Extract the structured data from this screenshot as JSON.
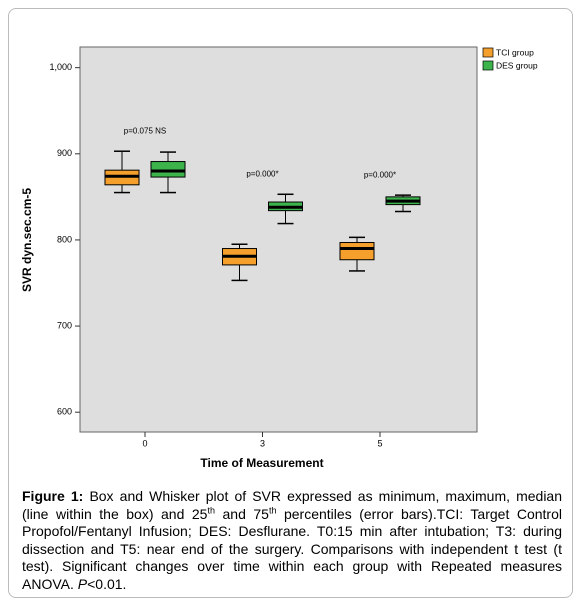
{
  "chart_data": {
    "type": "box",
    "x_label": "Time of Measurement",
    "y_label": "SVR dyn.sec.cm-5",
    "categories": [
      "0",
      "3",
      "5"
    ],
    "series": [
      {
        "name": "TCI group",
        "color": "#f5a02c",
        "values": [
          {
            "min": 855,
            "q1": 864,
            "median": 874,
            "q3": 881,
            "max": 903
          },
          {
            "min": 753,
            "q1": 771,
            "median": 781,
            "q3": 790,
            "max": 795
          },
          {
            "min": 764,
            "q1": 777,
            "median": 790,
            "q3": 797,
            "max": 803
          }
        ]
      },
      {
        "name": "DES group",
        "color": "#3cb44b",
        "values": [
          {
            "min": 855,
            "q1": 873,
            "median": 880,
            "q3": 891,
            "max": 902
          },
          {
            "min": 819,
            "q1": 834,
            "median": 838,
            "q3": 844,
            "max": 853
          },
          {
            "min": 833,
            "q1": 841,
            "median": 845,
            "q3": 850,
            "max": 852
          }
        ]
      }
    ],
    "annotations": [
      "p=0.075 NS",
      "p=0.000*",
      "p=0.000*"
    ],
    "ylim": [
      577,
      1024
    ],
    "yticks": [
      600,
      700,
      800,
      900,
      {
        "value": 1000,
        "label": "1,000"
      }
    ],
    "legend": "top-right"
  },
  "caption": {
    "label": "Figure 1:",
    "parts": [
      "Box and Whisker plot of SVR expressed as minimum, maximum, median (line within the box) and 25",
      "th",
      " and 75",
      "th",
      " percentiles (error bars).TCI: Target Control Propofol/Fentanyl Infusion; DES: Desflurane. T0:15 min after intubation; T3: during dissection and T5: near end of the surgery. Comparisons with independent t test (t test). Significant changes over time within each group with Repeated measures ANOVA. ",
      "P",
      "<0.01."
    ]
  }
}
